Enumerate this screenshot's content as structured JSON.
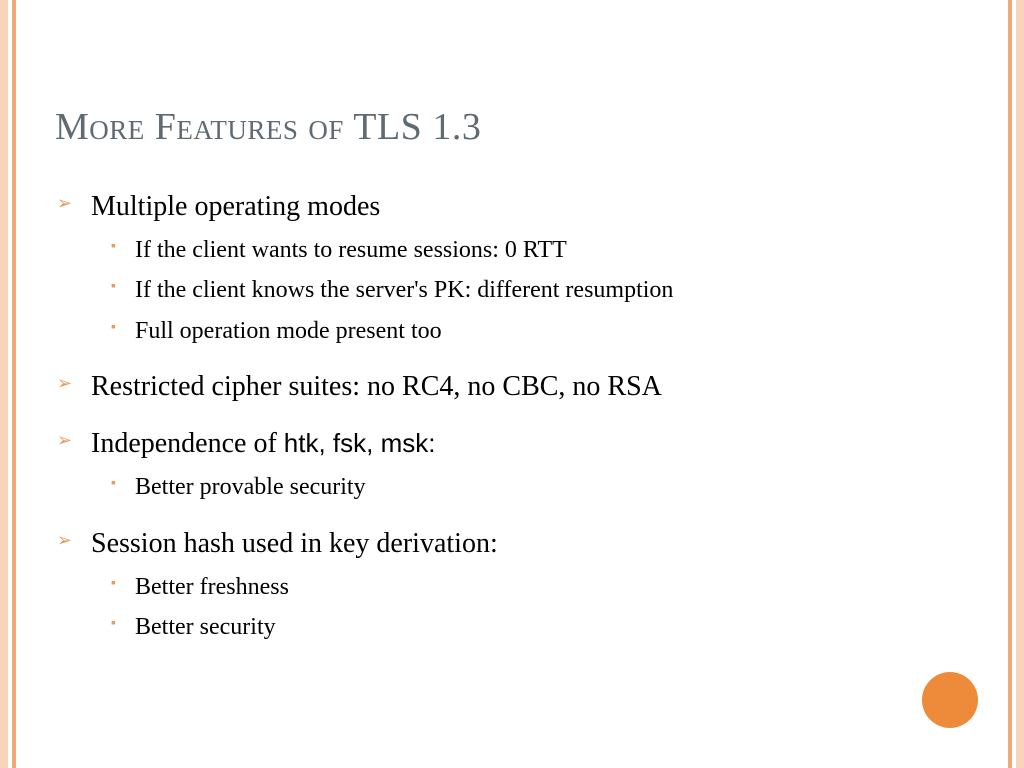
{
  "colors": {
    "title": "#5f6a72",
    "bullet": "#e89b5c",
    "circle": "#ed8b3a",
    "stripe_outer": "#f8d4bc",
    "stripe_inner": "#f2a97a",
    "text": "#000000",
    "background": "#ffffff"
  },
  "title": "More Features of TLS 1.3",
  "items": [
    {
      "text": "Multiple operating modes",
      "sub": [
        "If the client wants to resume sessions: 0 RTT",
        "If the client knows the server's PK: different resumption",
        "Full operation mode present too"
      ]
    },
    {
      "text": "Restricted cipher suites: no RC4, no CBC, no RSA",
      "sub": []
    },
    {
      "text_prefix": "Independence of ",
      "text_sans": "htk, fsk, msk:",
      "sub": [
        "Better provable security"
      ]
    },
    {
      "text": "Session hash used in key derivation:",
      "sub": [
        "Better freshness",
        "Better security"
      ]
    }
  ]
}
